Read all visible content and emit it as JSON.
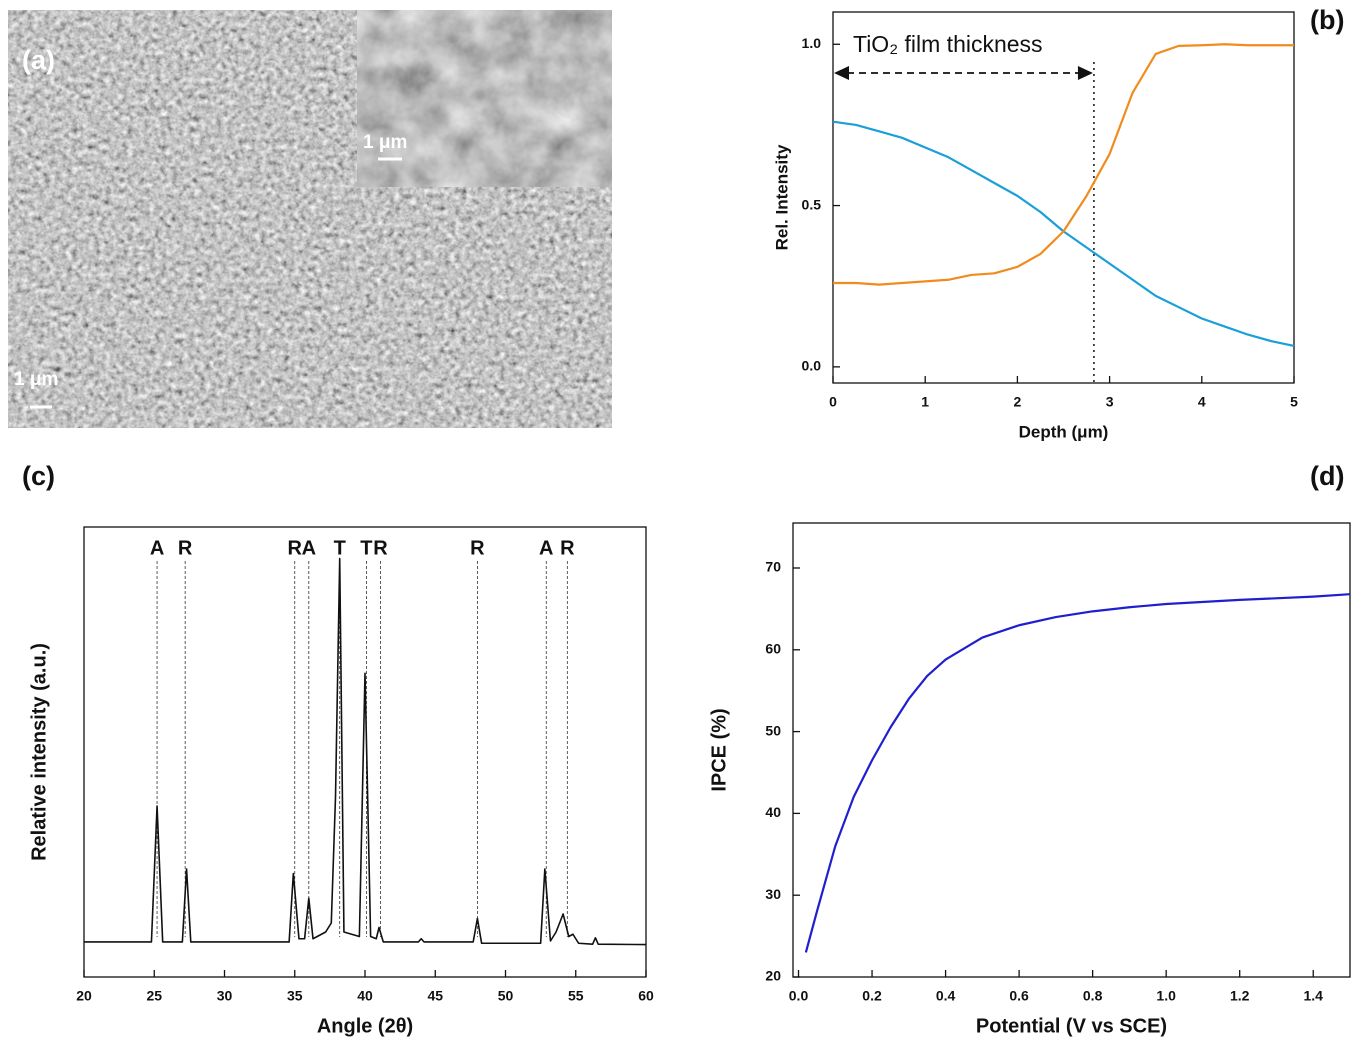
{
  "image": {
    "label": "(a)",
    "scale_bar": "1 μm",
    "inset_scale_bar": "1 μm"
  },
  "chart_data": [
    {
      "type": "line",
      "panel_label": "(b)",
      "xlabel": "Depth (μm)",
      "ylabel": "Rel. Intensity",
      "annotation": "TiO₂ film thickness",
      "vline": 2.83,
      "xlim": [
        0,
        5
      ],
      "xticks": [
        0,
        1,
        2,
        3,
        4,
        5
      ],
      "ylim": [
        -0.05,
        1.1
      ],
      "yticks": [
        {
          "value": 0,
          "label": "0.0"
        },
        0.5,
        {
          "value": 1,
          "label": "1.0"
        }
      ],
      "x": [
        0,
        0.25,
        0.5,
        0.75,
        1,
        1.25,
        1.5,
        1.75,
        2,
        2.25,
        2.5,
        2.75,
        3,
        3.25,
        3.5,
        3.75,
        4,
        4.25,
        4.5,
        4.75,
        5
      ],
      "series": [
        {
          "color": "#1a9fd9",
          "values": [
            0.76,
            0.75,
            0.73,
            0.71,
            0.68,
            0.65,
            0.61,
            0.57,
            0.53,
            0.48,
            0.42,
            0.37,
            0.32,
            0.27,
            0.22,
            0.185,
            0.15,
            0.125,
            0.1,
            0.08,
            0.065
          ]
        },
        {
          "color": "#f08c1e",
          "values": [
            0.26,
            0.26,
            0.255,
            0.26,
            0.265,
            0.27,
            0.285,
            0.29,
            0.31,
            0.35,
            0.42,
            0.53,
            0.66,
            0.85,
            0.97,
            0.995,
            0.997,
            1.0,
            0.997,
            0.997,
            0.997
          ]
        }
      ]
    },
    {
      "type": "line",
      "panel_label": "(c)",
      "xlabel": "Angle (2θ)",
      "ylabel": "Relative intensity (a.u.)",
      "xlim": [
        20,
        60
      ],
      "xticks": [
        20,
        25,
        30,
        35,
        40,
        45,
        50,
        55,
        60
      ],
      "ylim": [
        0,
        100
      ],
      "peak_labels": [
        {
          "x": 25.2,
          "label": "A"
        },
        {
          "x": 27.2,
          "label": "R"
        },
        {
          "x": 35.0,
          "label": "R"
        },
        {
          "x": 36.0,
          "label": "A"
        },
        {
          "x": 38.2,
          "label": "T"
        },
        {
          "x": 40.1,
          "label": "T"
        },
        {
          "x": 41.1,
          "label": "R"
        },
        {
          "x": 48.0,
          "label": "R"
        },
        {
          "x": 52.9,
          "label": "A"
        },
        {
          "x": 54.4,
          "label": "R"
        }
      ],
      "x": [
        20,
        24.8,
        25.2,
        25.6,
        27.0,
        27.3,
        27.6,
        34.6,
        34.9,
        35.3,
        35.7,
        36.0,
        36.3,
        37.2,
        37.6,
        37.9,
        38.2,
        38.5,
        39.6,
        40.0,
        40.4,
        40.8,
        41.0,
        41.3,
        43.8,
        44.0,
        44.2,
        47.7,
        48.0,
        48.3,
        52.5,
        52.8,
        53.2,
        53.6,
        54.1,
        54.5,
        54.8,
        55.2,
        56.2,
        56.4,
        56.6,
        60
      ],
      "series": [
        {
          "color": "#111111",
          "values": [
            7.8,
            7.8,
            38,
            7.8,
            7.8,
            24,
            7.8,
            7.8,
            23,
            8.5,
            8.5,
            17.5,
            8.5,
            10,
            12,
            40,
            93,
            10,
            9,
            67.5,
            9,
            8.5,
            11,
            7.8,
            7.8,
            8.5,
            7.8,
            7.8,
            13,
            7.5,
            7.5,
            24,
            8,
            10,
            14,
            9,
            9.5,
            7.5,
            7.3,
            8.7,
            7.3,
            7.2
          ]
        }
      ]
    },
    {
      "type": "line",
      "panel_label": "(d)",
      "xlabel": "Potential (V vs SCE)",
      "ylabel": "IPCE (%)",
      "xlim": [
        -0.015,
        1.5
      ],
      "xticks": [
        {
          "value": 0,
          "label": "0.0"
        },
        0.2,
        0.4,
        0.6,
        0.8,
        {
          "value": 1,
          "label": "1.0"
        },
        1.2,
        1.4
      ],
      "ylim": [
        20,
        75.5
      ],
      "yticks": [
        20,
        30,
        40,
        50,
        60,
        70
      ],
      "x": [
        0.02,
        0.05,
        0.1,
        0.15,
        0.2,
        0.25,
        0.3,
        0.35,
        0.4,
        0.5,
        0.6,
        0.7,
        0.8,
        0.9,
        1.0,
        1.2,
        1.4,
        1.5
      ],
      "series": [
        {
          "color": "#1f1fd0",
          "values": [
            23,
            28,
            36,
            42,
            46.5,
            50.5,
            54,
            56.8,
            58.8,
            61.5,
            63,
            64,
            64.7,
            65.2,
            65.6,
            66.1,
            66.5,
            66.8
          ]
        }
      ]
    }
  ]
}
